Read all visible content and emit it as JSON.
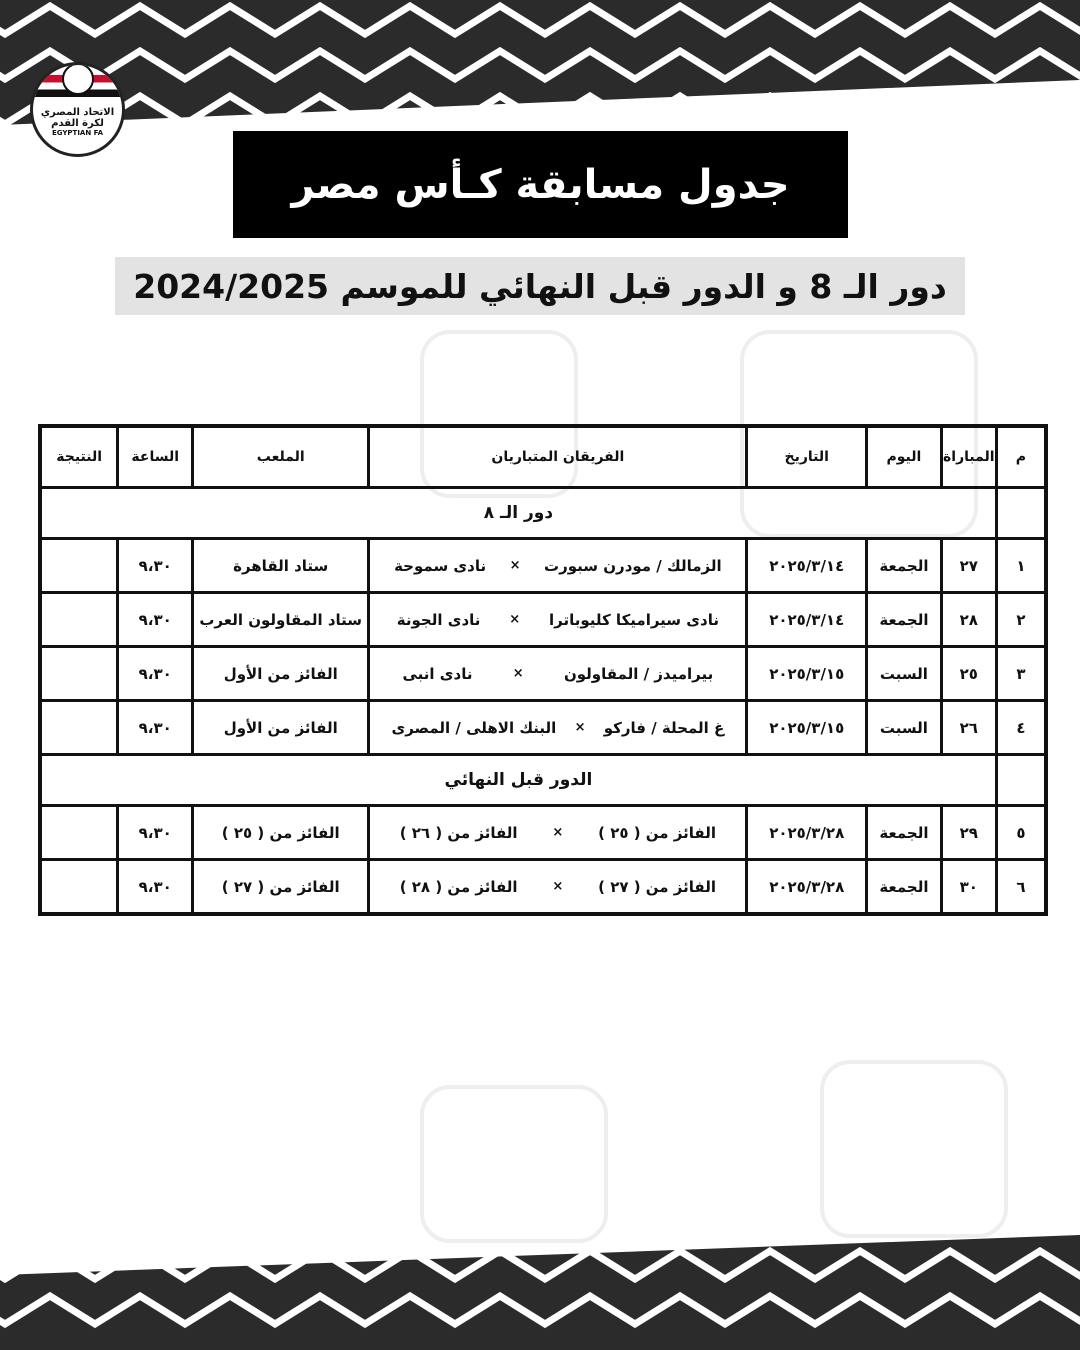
{
  "logo": {
    "text_ar": "الاتحاد المصري لكرة القدم",
    "text_en": "EGYPTIAN FA"
  },
  "title": "جدول مسابقة كـأس مصر",
  "subtitle": "دور الـ 8 و الدور قبل النهائي للموسم 2024/2025",
  "table": {
    "headers": {
      "no": "م",
      "match": "المباراة",
      "day": "اليوم",
      "date": "التاريخ",
      "teams": "الفريقان المتباريان",
      "stadium": "الملعب",
      "time": "الساعة",
      "result": "النتيجة"
    },
    "sections": [
      {
        "label": "دور الـ ٨",
        "rows": [
          {
            "no": "١",
            "match": "٢٧",
            "day": "الجمعة",
            "date": "٢٠٢٥/٣/١٤",
            "team1": "الزمالك / مودرن سبورت",
            "vs": "×",
            "team2": "نادى سموحة",
            "stadium": "ستاد القاهرة",
            "time": "٩،٣٠",
            "result": ""
          },
          {
            "no": "٢",
            "match": "٢٨",
            "day": "الجمعة",
            "date": "٢٠٢٥/٣/١٤",
            "team1": "نادى سيراميكا كليوباترا",
            "vs": "×",
            "team2": "نادى الجونة",
            "stadium": "ستاد المقاولون العرب",
            "time": "٩،٣٠",
            "result": ""
          },
          {
            "no": "٣",
            "match": "٢٥",
            "day": "السبت",
            "date": "٢٠٢٥/٣/١٥",
            "team1": "بيراميدز / المقاولون",
            "vs": "×",
            "team2": "نادى انبى",
            "stadium": "الفائز من الأول",
            "time": "٩،٣٠",
            "result": ""
          },
          {
            "no": "٤",
            "match": "٢٦",
            "day": "السبت",
            "date": "٢٠٢٥/٣/١٥",
            "team1": "غ المحلة / فاركو",
            "vs": "×",
            "team2": "البنك الاهلى / المصرى",
            "stadium": "الفائز من الأول",
            "time": "٩،٣٠",
            "result": ""
          }
        ]
      },
      {
        "label": "الدور قبل النهائي",
        "rows": [
          {
            "no": "٥",
            "match": "٢٩",
            "day": "الجمعة",
            "date": "٢٠٢٥/٣/٢٨",
            "team1": "الفائز من ( ٢٥ )",
            "vs": "×",
            "team2": "الفائز من ( ٢٦ )",
            "stadium": "الفائز من ( ٢٥ )",
            "time": "٩،٣٠",
            "result": ""
          },
          {
            "no": "٦",
            "match": "٣٠",
            "day": "الجمعة",
            "date": "٢٠٢٥/٣/٢٨",
            "team1": "الفائز من ( ٢٧ )",
            "vs": "×",
            "team2": "الفائز من ( ٢٨ )",
            "stadium": "الفائز من ( ٢٧ )",
            "time": "٩،٣٠",
            "result": ""
          }
        ]
      }
    ]
  },
  "colors": {
    "band": "#2b2b2b",
    "title_bg": "#000000",
    "subtitle_bg": "#e3e3e3"
  }
}
